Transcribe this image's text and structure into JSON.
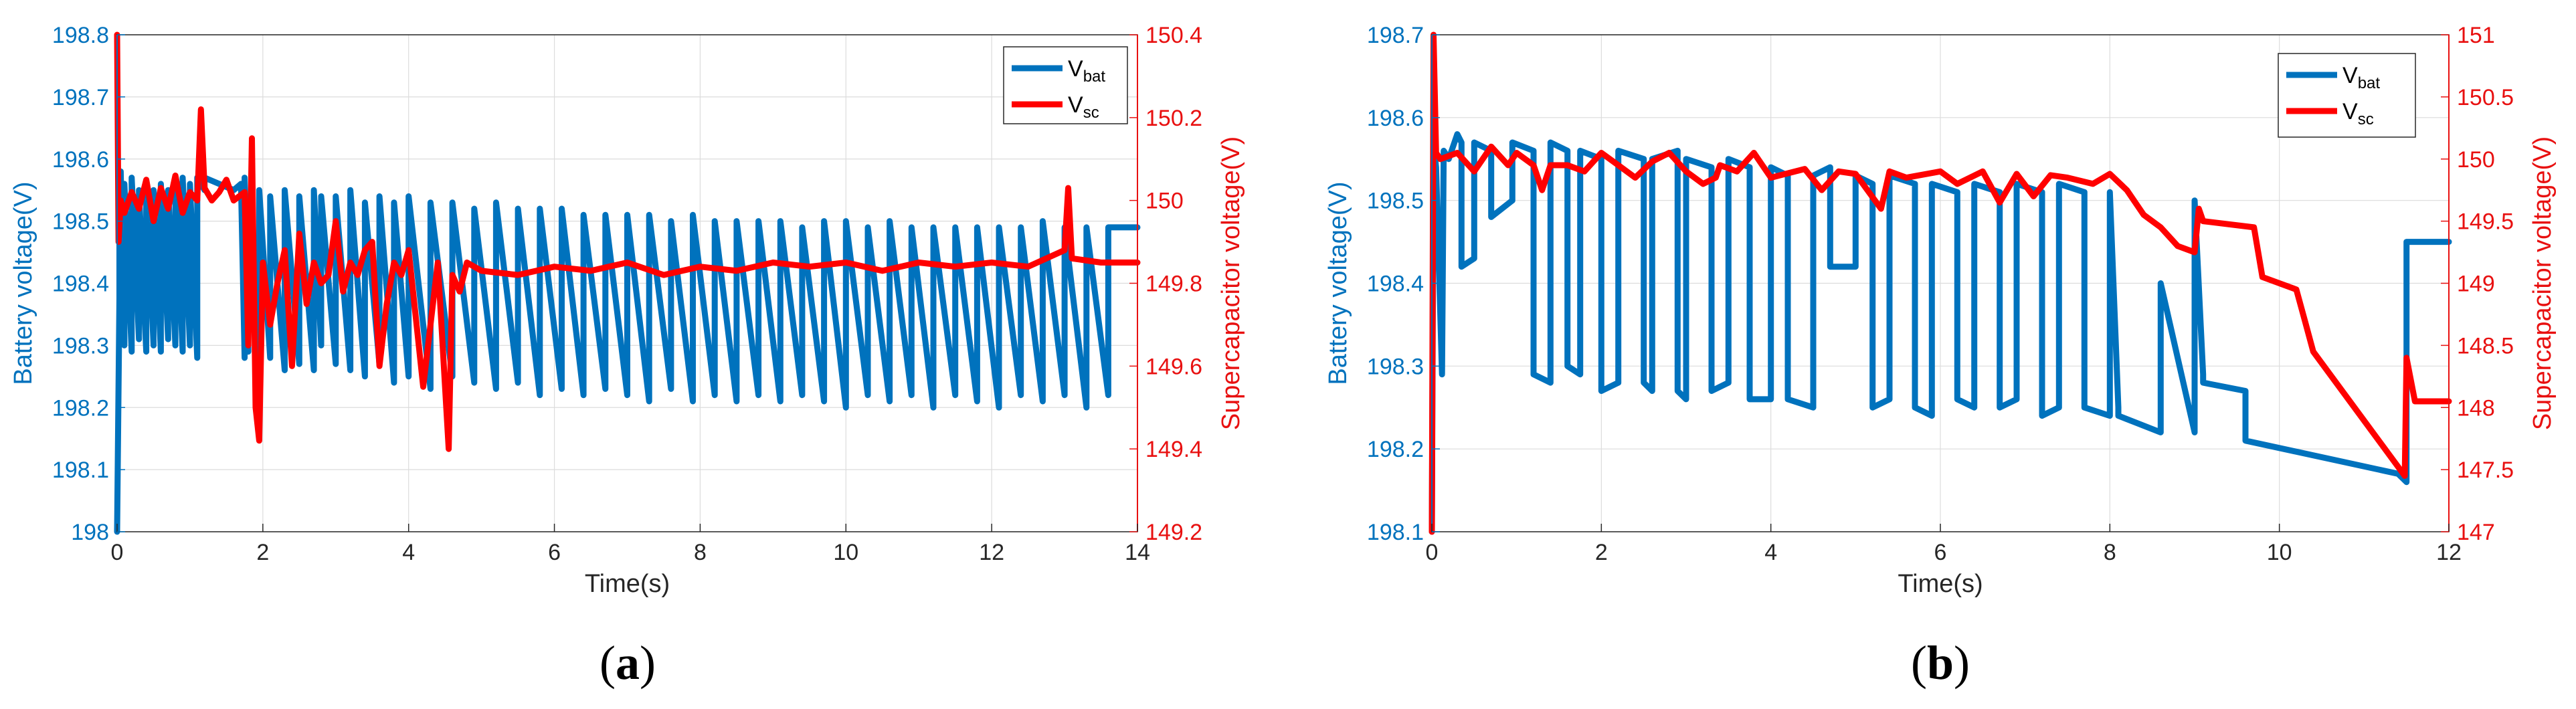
{
  "chart_data": [
    {
      "type": "line",
      "caption": "(a)",
      "xlabel": "Time(s)",
      "ylabel_left": "Battery voltage(V)",
      "ylabel_right": "Supercapacitor voltage(V)",
      "xlim": [
        0,
        14
      ],
      "x_ticks": [
        0,
        2,
        4,
        6,
        8,
        10,
        12,
        14
      ],
      "ylim_left": [
        198,
        198.8
      ],
      "y_ticks_left": [
        198,
        198.1,
        198.2,
        198.3,
        198.4,
        198.5,
        198.6,
        198.7,
        198.8
      ],
      "ylim_right": [
        149.2,
        150.4
      ],
      "y_ticks_right": [
        149.2,
        149.4,
        149.6,
        149.8,
        150,
        150.2,
        150.4
      ],
      "grid": true,
      "legend": "top-right",
      "series": [
        {
          "name": "V_bat",
          "label_main": "V",
          "label_sub": "bat",
          "axis": "left",
          "color": "#0072BD",
          "x": [
            0,
            0.05,
            0.1,
            0.1,
            0.2,
            0.2,
            0.3,
            0.3,
            0.4,
            0.4,
            0.5,
            0.5,
            0.6,
            0.6,
            0.7,
            0.7,
            0.8,
            0.8,
            0.9,
            0.9,
            1.0,
            1.0,
            1.1,
            1.1,
            1.2,
            1.2,
            1.4,
            1.6,
            1.7,
            1.75,
            1.75,
            1.8,
            1.8,
            1.95,
            1.95,
            2.1,
            2.1,
            2.3,
            2.3,
            2.5,
            2.5,
            2.7,
            2.7,
            2.8,
            2.8,
            3.0,
            3.0,
            3.2,
            3.2,
            3.4,
            3.4,
            3.6,
            3.6,
            3.8,
            3.8,
            4.0,
            4.0,
            4.3,
            4.3,
            4.6,
            4.6,
            4.9,
            4.9,
            5.2,
            5.2,
            5.5,
            5.5,
            5.8,
            5.8,
            6.1,
            6.1,
            6.4,
            6.4,
            6.7,
            6.7,
            7.0,
            7.0,
            7.3,
            7.3,
            7.6,
            7.6,
            7.9,
            7.9,
            8.2,
            8.2,
            8.5,
            8.5,
            8.8,
            8.8,
            9.1,
            9.1,
            9.4,
            9.4,
            9.7,
            9.7,
            10.0,
            10.0,
            10.3,
            10.3,
            10.6,
            10.6,
            10.9,
            10.9,
            11.2,
            11.2,
            11.5,
            11.5,
            11.8,
            11.8,
            12.1,
            12.1,
            12.4,
            12.4,
            12.7,
            12.7,
            13.0,
            13.0,
            13.3,
            13.3,
            13.6,
            13.6,
            14.0
          ],
          "y": [
            198.0,
            198.58,
            198.3,
            198.56,
            198.29,
            198.57,
            198.31,
            198.55,
            198.29,
            198.56,
            198.3,
            198.55,
            198.29,
            198.56,
            198.31,
            198.55,
            198.3,
            198.56,
            198.29,
            198.57,
            198.3,
            198.56,
            198.28,
            198.57,
            198.55,
            198.57,
            198.56,
            198.55,
            198.56,
            198.28,
            198.57,
            198.29,
            198.54,
            198.27,
            198.55,
            198.28,
            198.54,
            198.26,
            198.55,
            198.27,
            198.54,
            198.26,
            198.55,
            198.3,
            198.54,
            198.27,
            198.54,
            198.26,
            198.55,
            198.25,
            198.53,
            198.27,
            198.54,
            198.24,
            198.53,
            198.25,
            198.54,
            198.23,
            198.53,
            198.25,
            198.53,
            198.24,
            198.52,
            198.23,
            198.53,
            198.24,
            198.52,
            198.22,
            198.52,
            198.23,
            198.52,
            198.22,
            198.51,
            198.23,
            198.51,
            198.22,
            198.51,
            198.21,
            198.51,
            198.23,
            198.5,
            198.21,
            198.51,
            198.22,
            198.5,
            198.21,
            198.5,
            198.22,
            198.5,
            198.21,
            198.5,
            198.22,
            198.49,
            198.21,
            198.5,
            198.2,
            198.5,
            198.22,
            198.49,
            198.21,
            198.5,
            198.22,
            198.49,
            198.2,
            198.49,
            198.22,
            198.49,
            198.21,
            198.49,
            198.2,
            198.49,
            198.22,
            198.49,
            198.21,
            198.5,
            198.22,
            198.49,
            198.2,
            198.49,
            198.22,
            198.49,
            198.49
          ]
        },
        {
          "name": "V_sc",
          "label_main": "V",
          "label_sub": "sc",
          "axis": "right",
          "color": "#FF0000",
          "x": [
            0,
            0.02,
            0.05,
            0.1,
            0.2,
            0.3,
            0.4,
            0.5,
            0.6,
            0.7,
            0.8,
            0.9,
            1.0,
            1.1,
            1.15,
            1.2,
            1.3,
            1.4,
            1.5,
            1.6,
            1.75,
            1.8,
            1.85,
            1.9,
            1.95,
            2.0,
            2.1,
            2.2,
            2.3,
            2.4,
            2.5,
            2.6,
            2.7,
            2.8,
            2.9,
            3.0,
            3.1,
            3.2,
            3.3,
            3.4,
            3.5,
            3.6,
            3.7,
            3.8,
            3.9,
            4.0,
            4.2,
            4.4,
            4.55,
            4.6,
            4.7,
            4.8,
            5.0,
            5.5,
            6.0,
            6.5,
            7.0,
            7.5,
            8.0,
            8.5,
            9.0,
            9.5,
            10.0,
            10.5,
            11.0,
            11.5,
            12.0,
            12.5,
            13.0,
            13.05,
            13.1,
            13.5,
            14.0
          ],
          "y": [
            150.4,
            149.9,
            150.0,
            149.97,
            150.02,
            149.98,
            150.05,
            149.95,
            150.03,
            149.98,
            150.06,
            149.97,
            150.02,
            150.0,
            150.22,
            150.03,
            150.0,
            150.02,
            150.05,
            150.0,
            150.02,
            149.65,
            150.15,
            149.5,
            149.42,
            149.85,
            149.7,
            149.8,
            149.88,
            149.6,
            149.92,
            149.75,
            149.85,
            149.8,
            149.82,
            149.95,
            149.78,
            149.85,
            149.82,
            149.88,
            149.9,
            149.6,
            149.75,
            149.85,
            149.82,
            149.88,
            149.55,
            149.85,
            149.4,
            149.82,
            149.78,
            149.85,
            149.83,
            149.82,
            149.84,
            149.83,
            149.85,
            149.82,
            149.84,
            149.83,
            149.85,
            149.84,
            149.85,
            149.83,
            149.85,
            149.84,
            149.85,
            149.84,
            149.88,
            150.03,
            149.86,
            149.85,
            149.85
          ]
        }
      ]
    },
    {
      "type": "line",
      "caption": "(b)",
      "xlabel": "Time(s)",
      "ylabel_left": "Battery voltage(V)",
      "ylabel_right": "Supercapacitor voltage(V)",
      "xlim": [
        0,
        12
      ],
      "x_ticks": [
        0,
        2,
        4,
        6,
        8,
        10,
        12
      ],
      "ylim_left": [
        198.1,
        198.7
      ],
      "y_ticks_left": [
        198.1,
        198.2,
        198.3,
        198.4,
        198.5,
        198.6,
        198.7
      ],
      "ylim_right": [
        147,
        151
      ],
      "y_ticks_right": [
        147,
        147.5,
        148,
        148.5,
        149,
        149.5,
        150,
        150.5,
        151
      ],
      "grid": true,
      "legend": "top-right",
      "series": [
        {
          "name": "V_bat",
          "label_main": "V",
          "label_sub": "bat",
          "axis": "left",
          "color": "#0072BD",
          "x": [
            0,
            0.02,
            0.05,
            0.12,
            0.14,
            0.2,
            0.3,
            0.35,
            0.35,
            0.5,
            0.5,
            0.7,
            0.7,
            0.95,
            0.95,
            1.2,
            1.2,
            1.4,
            1.4,
            1.6,
            1.6,
            1.75,
            1.75,
            2.0,
            2.0,
            2.2,
            2.2,
            2.5,
            2.5,
            2.6,
            2.6,
            2.9,
            2.9,
            3.0,
            3.0,
            3.3,
            3.3,
            3.5,
            3.5,
            3.75,
            3.75,
            4.0,
            4.0,
            4.2,
            4.2,
            4.5,
            4.5,
            4.7,
            4.7,
            5.0,
            5.0,
            5.2,
            5.2,
            5.4,
            5.4,
            5.7,
            5.7,
            5.9,
            5.9,
            6.2,
            6.2,
            6.4,
            6.4,
            6.7,
            6.7,
            6.9,
            6.9,
            7.2,
            7.2,
            7.4,
            7.4,
            7.7,
            7.7,
            8.0,
            8.0,
            8.1,
            8.1,
            8.6,
            8.6,
            9.0,
            9.0,
            9.1,
            9.1,
            9.6,
            9.6,
            11.4,
            11.5,
            11.5,
            12.0
          ],
          "y": [
            198.1,
            198.57,
            198.54,
            198.29,
            198.56,
            198.55,
            198.58,
            198.57,
            198.42,
            198.43,
            198.57,
            198.56,
            198.48,
            198.5,
            198.57,
            198.56,
            198.29,
            198.28,
            198.57,
            198.56,
            198.3,
            198.29,
            198.56,
            198.55,
            198.27,
            198.28,
            198.56,
            198.55,
            198.28,
            198.27,
            198.55,
            198.56,
            198.27,
            198.26,
            198.55,
            198.54,
            198.27,
            198.28,
            198.55,
            198.54,
            198.26,
            198.26,
            198.54,
            198.53,
            198.26,
            198.25,
            198.53,
            198.54,
            198.42,
            198.42,
            198.53,
            198.52,
            198.25,
            198.26,
            198.53,
            198.52,
            198.25,
            198.24,
            198.52,
            198.51,
            198.26,
            198.25,
            198.52,
            198.51,
            198.25,
            198.26,
            198.52,
            198.51,
            198.24,
            198.25,
            198.52,
            198.51,
            198.25,
            198.24,
            198.51,
            198.25,
            198.24,
            198.22,
            198.4,
            198.22,
            198.5,
            198.29,
            198.28,
            198.27,
            198.21,
            198.17,
            198.16,
            198.45,
            198.45
          ]
        },
        {
          "name": "V_sc",
          "label_main": "V",
          "label_sub": "sc",
          "axis": "right",
          "color": "#FF0000",
          "x": [
            0,
            0.02,
            0.05,
            0.1,
            0.3,
            0.5,
            0.6,
            0.7,
            0.9,
            1.0,
            1.2,
            1.3,
            1.4,
            1.6,
            1.8,
            2.0,
            2.2,
            2.4,
            2.6,
            2.8,
            3.0,
            3.2,
            3.35,
            3.4,
            3.6,
            3.8,
            4.0,
            4.4,
            4.6,
            4.8,
            5.0,
            5.3,
            5.4,
            5.6,
            6.0,
            6.2,
            6.5,
            6.7,
            6.9,
            7.1,
            7.3,
            7.5,
            7.8,
            8.0,
            8.2,
            8.4,
            8.6,
            8.8,
            9.0,
            9.05,
            9.1,
            9.7,
            9.8,
            10.2,
            10.3,
            10.4,
            11.48,
            11.5,
            11.6,
            12.0
          ],
          "y": [
            147,
            151,
            150.05,
            150.0,
            150.05,
            149.9,
            150.0,
            150.1,
            149.95,
            150.05,
            149.95,
            149.75,
            149.95,
            149.95,
            149.9,
            150.05,
            149.95,
            149.85,
            149.98,
            150.05,
            149.9,
            149.8,
            149.85,
            149.95,
            149.9,
            150.05,
            149.85,
            149.92,
            149.75,
            149.9,
            149.88,
            149.6,
            149.9,
            149.85,
            149.9,
            149.8,
            149.9,
            149.65,
            149.88,
            149.7,
            149.87,
            149.85,
            149.8,
            149.88,
            149.75,
            149.55,
            149.45,
            149.3,
            149.25,
            149.6,
            149.5,
            149.45,
            149.05,
            148.95,
            148.7,
            148.45,
            147.45,
            148.4,
            148.05,
            148.05
          ]
        }
      ]
    }
  ]
}
